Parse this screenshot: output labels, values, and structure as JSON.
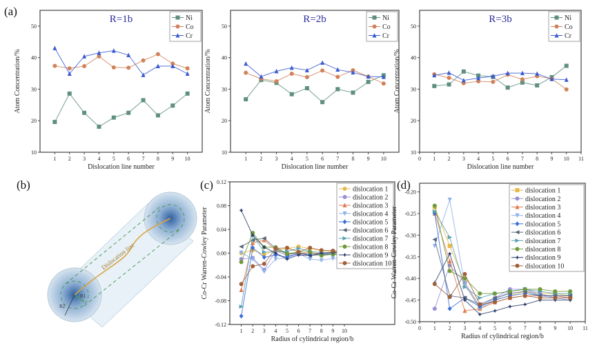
{
  "panel_labels": {
    "a": "(a)",
    "b": "(b)",
    "c": "(c)",
    "d": "(d)"
  },
  "diagram": {
    "line_label": "Dislocation line",
    "r1_label": "R1",
    "r2_label": "R2",
    "colors": {
      "cylinder": "#cfe3ef",
      "core": "#2f5f9f",
      "line": "#d9a441",
      "dash": "#4f9a5a"
    }
  },
  "chart_data": [
    {
      "type": "line",
      "title": "R=1b",
      "title_color": "#2b2b9a",
      "xlabel": "Dislocation line number",
      "ylabel": "Atom Concentration/%",
      "xlim": [
        0,
        11
      ],
      "ylim": [
        10,
        55
      ],
      "xticks": [
        1,
        2,
        3,
        4,
        5,
        6,
        7,
        8,
        9,
        10
      ],
      "yticks": [
        10,
        20,
        30,
        40,
        50
      ],
      "legend": "top-right",
      "x": [
        1,
        2,
        3,
        4,
        5,
        6,
        7,
        8,
        9,
        10
      ],
      "series": [
        {
          "name": "Ni",
          "color": "#5f8f80",
          "marker": "square",
          "values": [
            19.6,
            28.6,
            22.5,
            18.1,
            21.0,
            22.5,
            26.5,
            21.7,
            24.8,
            28.6
          ]
        },
        {
          "name": "Co",
          "color": "#d0825a",
          "marker": "circle",
          "values": [
            37.4,
            36.6,
            37.3,
            40.4,
            36.9,
            36.8,
            39.1,
            41.1,
            38.1,
            36.6
          ]
        },
        {
          "name": "Cr",
          "color": "#3b5bd0",
          "marker": "triangle",
          "values": [
            43.0,
            34.9,
            40.4,
            41.5,
            42.2,
            40.8,
            34.5,
            37.3,
            37.3,
            34.9
          ]
        }
      ]
    },
    {
      "type": "line",
      "title": "R=2b",
      "title_color": "#2b2b9a",
      "xlabel": "Dislocation line number",
      "ylabel": "Atom Concentration/%",
      "xlim": [
        0,
        11
      ],
      "ylim": [
        10,
        55
      ],
      "xticks": [
        1,
        2,
        3,
        4,
        5,
        6,
        7,
        8,
        9,
        10
      ],
      "yticks": [
        10,
        20,
        30,
        40,
        50
      ],
      "legend": "top-right",
      "x": [
        1,
        2,
        3,
        4,
        5,
        6,
        7,
        8,
        9,
        10
      ],
      "series": [
        {
          "name": "Ni",
          "color": "#5f8f80",
          "marker": "square",
          "values": [
            26.8,
            32.9,
            32.0,
            28.4,
            30.3,
            25.9,
            30.0,
            28.9,
            32.3,
            34.4
          ]
        },
        {
          "name": "Co",
          "color": "#d0825a",
          "marker": "circle",
          "values": [
            35.2,
            33.3,
            32.5,
            34.9,
            33.8,
            35.9,
            33.9,
            36.0,
            34.0,
            31.8
          ]
        },
        {
          "name": "Cr",
          "color": "#3b5bd0",
          "marker": "triangle",
          "values": [
            38.1,
            34.0,
            35.7,
            36.8,
            36.0,
            38.4,
            36.2,
            35.3,
            34.0,
            33.9
          ]
        }
      ]
    },
    {
      "type": "line",
      "title": "R=3b",
      "title_color": "#2b2b9a",
      "xlabel": "Dislocation line number",
      "ylabel": "Atom Concentration/%",
      "xlim": [
        0,
        11
      ],
      "ylim": [
        10,
        55
      ],
      "xticks": [
        0,
        1,
        2,
        3,
        4,
        5,
        6,
        7,
        8,
        9,
        10,
        11
      ],
      "yticks": [
        10,
        20,
        30,
        40,
        50
      ],
      "legend": "top-right",
      "x": [
        1,
        2,
        3,
        4,
        5,
        6,
        7,
        8,
        9,
        10
      ],
      "series": [
        {
          "name": "Ni",
          "color": "#5f8f80",
          "marker": "square",
          "values": [
            31.0,
            31.5,
            35.6,
            34.3,
            33.9,
            30.5,
            32.1,
            31.2,
            33.8,
            37.4
          ]
        },
        {
          "name": "Co",
          "color": "#d0825a",
          "marker": "circle",
          "values": [
            34.7,
            33.6,
            31.9,
            32.5,
            32.3,
            34.6,
            33.1,
            34.1,
            33.3,
            29.9
          ]
        },
        {
          "name": "Cr",
          "color": "#3b5bd0",
          "marker": "triangle",
          "values": [
            34.4,
            35.2,
            32.8,
            33.5,
            34.1,
            35.1,
            35.1,
            34.9,
            33.2,
            33.0
          ]
        }
      ]
    },
    {
      "type": "line",
      "title": "",
      "xlabel": "Radius of cylindrical region/b",
      "ylabel": "Co-Cr Warren-Cowley Parameter",
      "xlim": [
        0,
        14.4
      ],
      "ylim": [
        -0.12,
        0.12
      ],
      "xticks": [
        1,
        2,
        3,
        4,
        5,
        6,
        7,
        8,
        9,
        10
      ],
      "yticks": [
        -0.12,
        -0.08,
        -0.04,
        0.0,
        0.04,
        0.08,
        0.12
      ],
      "ytick_labels": [
        "-0.12",
        "-0.08",
        "-0.04",
        "0.00",
        "0.04",
        "0.08",
        "0.12"
      ],
      "legend": "top-right",
      "x": [
        1,
        2,
        3,
        4,
        5,
        6,
        7,
        8,
        9,
        10
      ],
      "series": [
        {
          "name": "dislocation 1",
          "color": "#e8b84a",
          "marker": "circle",
          "values": [
            0.0,
            0.005,
            -0.002,
            0.005,
            0.008,
            0.011,
            0.008,
            0.004,
            0.003,
            0.002
          ]
        },
        {
          "name": "dislocation 2",
          "color": "#9a8fd6",
          "marker": "circle",
          "values": [
            -0.01,
            -0.008,
            -0.028,
            0.004,
            -0.004,
            -0.002,
            0.0,
            -0.002,
            -0.002,
            -0.001
          ]
        },
        {
          "name": "dislocation 3",
          "color": "#e07a50",
          "marker": "triangle",
          "values": [
            -0.062,
            0.017,
            0.022,
            0.005,
            0.0,
            0.0,
            0.0,
            0.0,
            0.002,
            0.002
          ]
        },
        {
          "name": "dislocation 4",
          "color": "#8fb0e8",
          "marker": "triangle-down",
          "values": [
            0.001,
            -0.01,
            -0.031,
            -0.01,
            -0.008,
            -0.001,
            -0.01,
            -0.012,
            -0.009,
            -0.009
          ]
        },
        {
          "name": "dislocation 5",
          "color": "#3a6fd8",
          "marker": "diamond",
          "values": [
            -0.106,
            0.009,
            -0.007,
            -0.003,
            -0.007,
            0.0,
            -0.003,
            -0.003,
            -0.002,
            -0.001
          ]
        },
        {
          "name": "dislocation 6",
          "color": "#556677",
          "marker": "triangle-left",
          "values": [
            0.011,
            0.022,
            0.025,
            0.008,
            -0.002,
            0.0,
            -0.004,
            -0.002,
            0.0,
            0.001
          ]
        },
        {
          "name": "dislocation 7",
          "color": "#5aa0b0",
          "marker": "triangle-right",
          "values": [
            -0.09,
            0.03,
            0.002,
            0.002,
            0.003,
            0.008,
            0.003,
            0.001,
            0.001,
            0.0
          ]
        },
        {
          "name": "dislocation 8",
          "color": "#6f9a3a",
          "marker": "circle",
          "values": [
            -0.015,
            0.034,
            0.01,
            0.01,
            -0.001,
            0.002,
            0.002,
            -0.004,
            -0.002,
            -0.004
          ]
        },
        {
          "name": "dislocation 9",
          "color": "#2a3a6a",
          "marker": "star",
          "values": [
            0.072,
            0.03,
            0.01,
            0.0,
            -0.01,
            -0.003,
            -0.004,
            0.0,
            0.001,
            0.001
          ]
        },
        {
          "name": "dislocation 10",
          "color": "#a0603a",
          "marker": "circle",
          "values": [
            -0.052,
            -0.022,
            -0.018,
            0.008,
            0.009,
            0.002,
            0.009,
            0.005,
            0.004,
            0.003
          ]
        }
      ]
    },
    {
      "type": "line",
      "title": "",
      "xlabel": "Radius of cylindrical region/b",
      "ylabel": "Co-Cr Warren-Cowley Parameter",
      "xlim": [
        0,
        11
      ],
      "ylim": [
        -0.5,
        -0.18
      ],
      "xticks": [
        0,
        1,
        2,
        3,
        4,
        5,
        6,
        7,
        8,
        9,
        10,
        11
      ],
      "yticks": [
        -0.5,
        -0.45,
        -0.4,
        -0.35,
        -0.3,
        -0.25,
        -0.2
      ],
      "ytick_labels": [
        "-0.50",
        "-0.45",
        "-0.40",
        "-0.35",
        "-0.30",
        "-0.25",
        "-0.20"
      ],
      "legend": "top-right",
      "x": [
        1,
        2,
        3,
        4,
        5,
        6,
        7,
        8,
        9,
        10
      ],
      "series": [
        {
          "name": "dislocation 1",
          "color": "#e8b84a",
          "marker": "square",
          "values": [
            -0.235,
            -0.325,
            -0.41,
            -0.47,
            -0.45,
            -0.44,
            -0.43,
            -0.435,
            -0.435,
            -0.44
          ]
        },
        {
          "name": "dislocation 2",
          "color": "#9a8fd6",
          "marker": "circle",
          "values": [
            -0.47,
            -0.37,
            -0.41,
            -0.465,
            -0.445,
            -0.425,
            -0.425,
            -0.435,
            -0.445,
            -0.445
          ]
        },
        {
          "name": "dislocation 3",
          "color": "#e07a50",
          "marker": "triangle",
          "values": [
            -0.25,
            -0.36,
            -0.475,
            -0.47,
            -0.455,
            -0.445,
            -0.44,
            -0.44,
            -0.44,
            -0.445
          ]
        },
        {
          "name": "dislocation 4",
          "color": "#8fb0e8",
          "marker": "triangle-down",
          "values": [
            -0.325,
            -0.218,
            -0.415,
            -0.47,
            -0.45,
            -0.43,
            -0.425,
            -0.44,
            -0.445,
            -0.45
          ]
        },
        {
          "name": "dislocation 5",
          "color": "#3a6fd8",
          "marker": "diamond",
          "values": [
            -0.25,
            -0.47,
            -0.445,
            -0.465,
            -0.45,
            -0.44,
            -0.435,
            -0.44,
            -0.44,
            -0.44
          ]
        },
        {
          "name": "dislocation 6",
          "color": "#556677",
          "marker": "triangle-left",
          "values": [
            -0.31,
            -0.44,
            -0.445,
            -0.46,
            -0.445,
            -0.435,
            -0.43,
            -0.44,
            -0.44,
            -0.44
          ]
        },
        {
          "name": "dislocation 7",
          "color": "#5aa0b0",
          "marker": "triangle-right",
          "values": [
            -0.245,
            -0.305,
            -0.42,
            -0.445,
            -0.435,
            -0.43,
            -0.425,
            -0.43,
            -0.435,
            -0.435
          ]
        },
        {
          "name": "dislocation 8",
          "color": "#6f9a3a",
          "marker": "circle",
          "values": [
            -0.232,
            -0.383,
            -0.4,
            -0.435,
            -0.435,
            -0.43,
            -0.425,
            -0.425,
            -0.43,
            -0.43
          ]
        },
        {
          "name": "dislocation 9",
          "color": "#2a3a6a",
          "marker": "star",
          "values": [
            -0.41,
            -0.343,
            -0.45,
            -0.483,
            -0.475,
            -0.465,
            -0.46,
            -0.45,
            -0.45,
            -0.45
          ]
        },
        {
          "name": "dislocation 10",
          "color": "#a0603a",
          "marker": "circle",
          "values": [
            -0.413,
            -0.443,
            -0.39,
            -0.46,
            -0.455,
            -0.445,
            -0.44,
            -0.445,
            -0.445,
            -0.445
          ]
        }
      ]
    }
  ]
}
